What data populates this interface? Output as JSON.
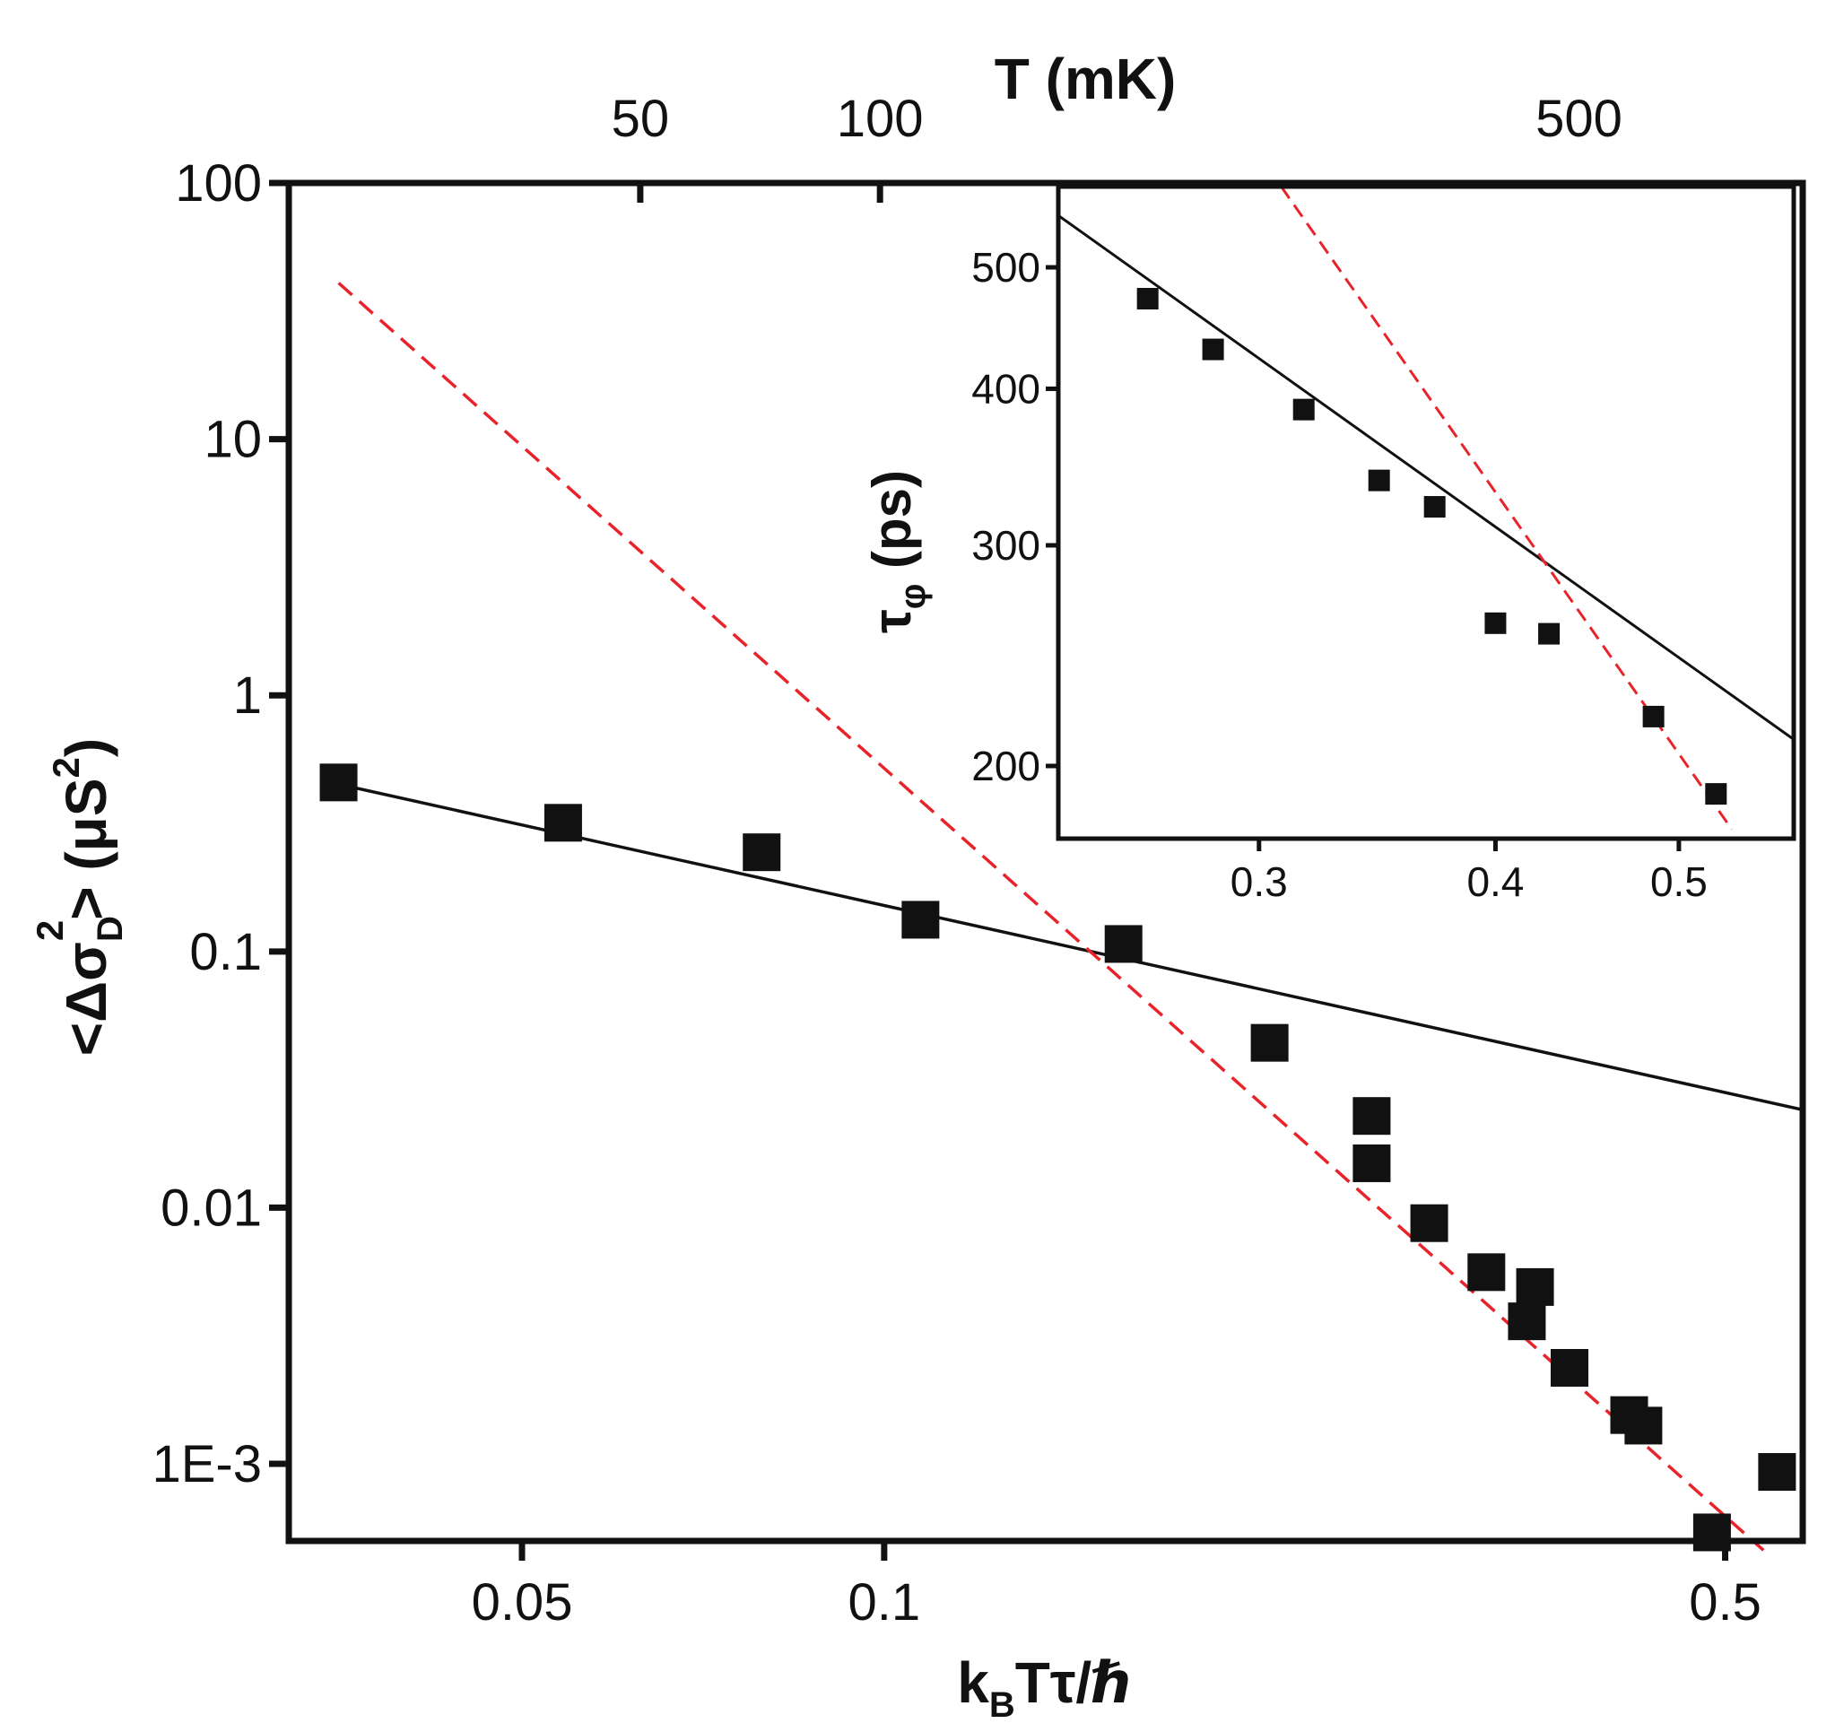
{
  "chart_data": [
    {
      "type": "scatter",
      "scale": "log-log",
      "xlabel": "kBTτ/ℏ",
      "ylabel": "<ΔσD²> (μS²)",
      "top_axis_label": "T (mK)",
      "xlim": [
        0.032,
        0.58
      ],
      "ylim": [
        0.0005,
        100
      ],
      "x_ticks": [
        {
          "value": 0.05,
          "label": "0.05"
        },
        {
          "value": 0.1,
          "label": "0.1"
        },
        {
          "value": 0.5,
          "label": "0.5"
        }
      ],
      "y_ticks": [
        {
          "value": 100,
          "label": "100"
        },
        {
          "value": 10,
          "label": "10"
        },
        {
          "value": 1,
          "label": "1"
        },
        {
          "value": 0.1,
          "label": "0.1"
        },
        {
          "value": 0.01,
          "label": "0.01"
        },
        {
          "value": 0.001,
          "label": "1E-3"
        }
      ],
      "top_ticks": [
        {
          "x_value": 0.0627,
          "label": "50"
        },
        {
          "x_value": 0.0992,
          "label": "100"
        },
        {
          "x_value": 0.378,
          "label": "500"
        }
      ],
      "top_axis_tick_marks": [
        0.0627,
        0.0992
      ],
      "series": [
        {
          "name": "data",
          "marker": "square",
          "color": "#111111",
          "x": [
            0.0352,
            0.0541,
            0.0791,
            0.1072,
            0.1581,
            0.2091,
            0.2542,
            0.2542,
            0.2838,
            0.3166,
            0.3475,
            0.3421,
            0.3712,
            0.4161,
            0.4276,
            0.4876,
            0.5522
          ],
          "y": [
            0.457,
            0.318,
            0.244,
            0.133,
            0.107,
            0.044,
            0.0228,
            0.0149,
            0.0087,
            0.0056,
            0.0049,
            0.0036,
            0.00237,
            0.00155,
            0.00141,
            0.00054,
            0.00093
          ]
        },
        {
          "name": "solid fit",
          "style": "solid",
          "color": "#111111",
          "x": [
            0.0352,
            0.58
          ],
          "y": [
            0.45,
            0.0241
          ]
        },
        {
          "name": "dashed fit",
          "style": "dashed",
          "color": "#e8232a",
          "x": [
            0.0352,
            0.538
          ],
          "y": [
            40.7,
            0.00046
          ]
        }
      ]
    },
    {
      "type": "scatter",
      "role": "inset",
      "scale": "log-log",
      "xlabel": "",
      "ylabel": "τφ (ps)",
      "xlim": [
        0.235,
        0.575
      ],
      "ylim": [
        175,
        580
      ],
      "x_ticks": [
        {
          "value": 0.3,
          "label": "0.3"
        },
        {
          "value": 0.4,
          "label": "0.4"
        },
        {
          "value": 0.5,
          "label": "0.5"
        }
      ],
      "y_ticks": [
        {
          "value": 500,
          "label": "500"
        },
        {
          "value": 400,
          "label": "400"
        },
        {
          "value": 300,
          "label": "300"
        },
        {
          "value": 200,
          "label": "200"
        }
      ],
      "series": [
        {
          "name": "data",
          "marker": "square",
          "color": "#111111",
          "x": [
            0.262,
            0.2837,
            0.3168,
            0.3472,
            0.3715,
            0.4,
            0.4269,
            0.4848,
            0.5231
          ],
          "y": [
            472,
            430,
            385,
            338,
            322,
            260,
            255,
            219,
            190
          ]
        },
        {
          "name": "solid fit",
          "style": "solid",
          "color": "#111111",
          "x": [
            0.235,
            0.575
          ],
          "y": [
            550,
            210
          ]
        },
        {
          "name": "dashed fit",
          "style": "dashed",
          "color": "#e8232a",
          "x": [
            0.3082,
            0.5333
          ],
          "y": [
            580,
            178
          ]
        }
      ]
    }
  ]
}
